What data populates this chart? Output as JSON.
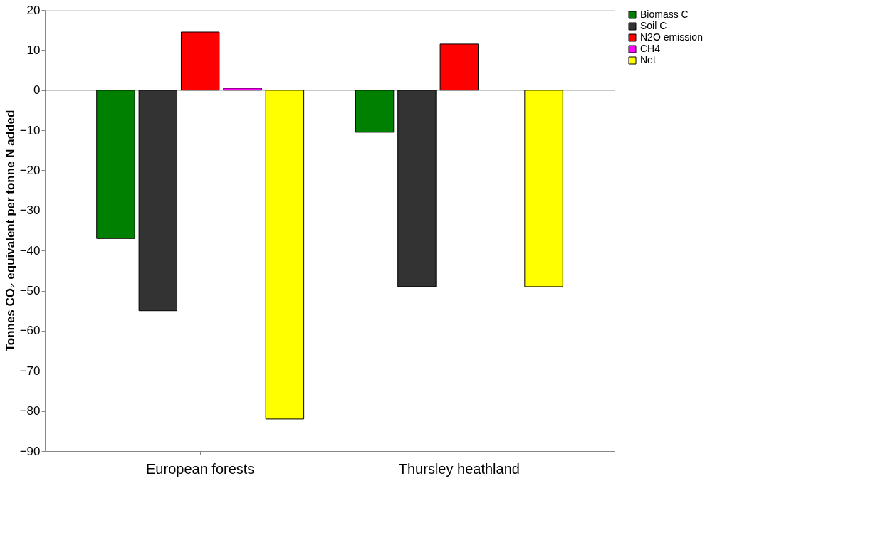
{
  "chart_data": {
    "type": "bar",
    "ylabel": "Tonnes CO₂ equivalent per tonne N added",
    "categories": [
      "European forests",
      "Thursley heathland"
    ],
    "series": [
      {
        "name": "Biomass C",
        "color": "#008000",
        "values": [
          -37,
          -10.5
        ]
      },
      {
        "name": "Soil C",
        "color": "#333333",
        "values": [
          -55,
          -49
        ]
      },
      {
        "name": "N2O emission",
        "color": "#ff0000",
        "values": [
          14.5,
          11.5
        ]
      },
      {
        "name": "CH4",
        "color": "#ff00ff",
        "values": [
          0.5,
          null
        ]
      },
      {
        "name": "Net",
        "color": "#ffff00",
        "values": [
          -82,
          -49
        ]
      }
    ],
    "ylim": [
      -90,
      20
    ],
    "yticks": [
      -90,
      -80,
      -70,
      -60,
      -50,
      -40,
      -30,
      -20,
      -10,
      0,
      10,
      20
    ],
    "ref_lines": [
      {
        "axis": "y",
        "value": 0,
        "color": "#000000"
      }
    ],
    "grid": false,
    "legend": "right"
  }
}
